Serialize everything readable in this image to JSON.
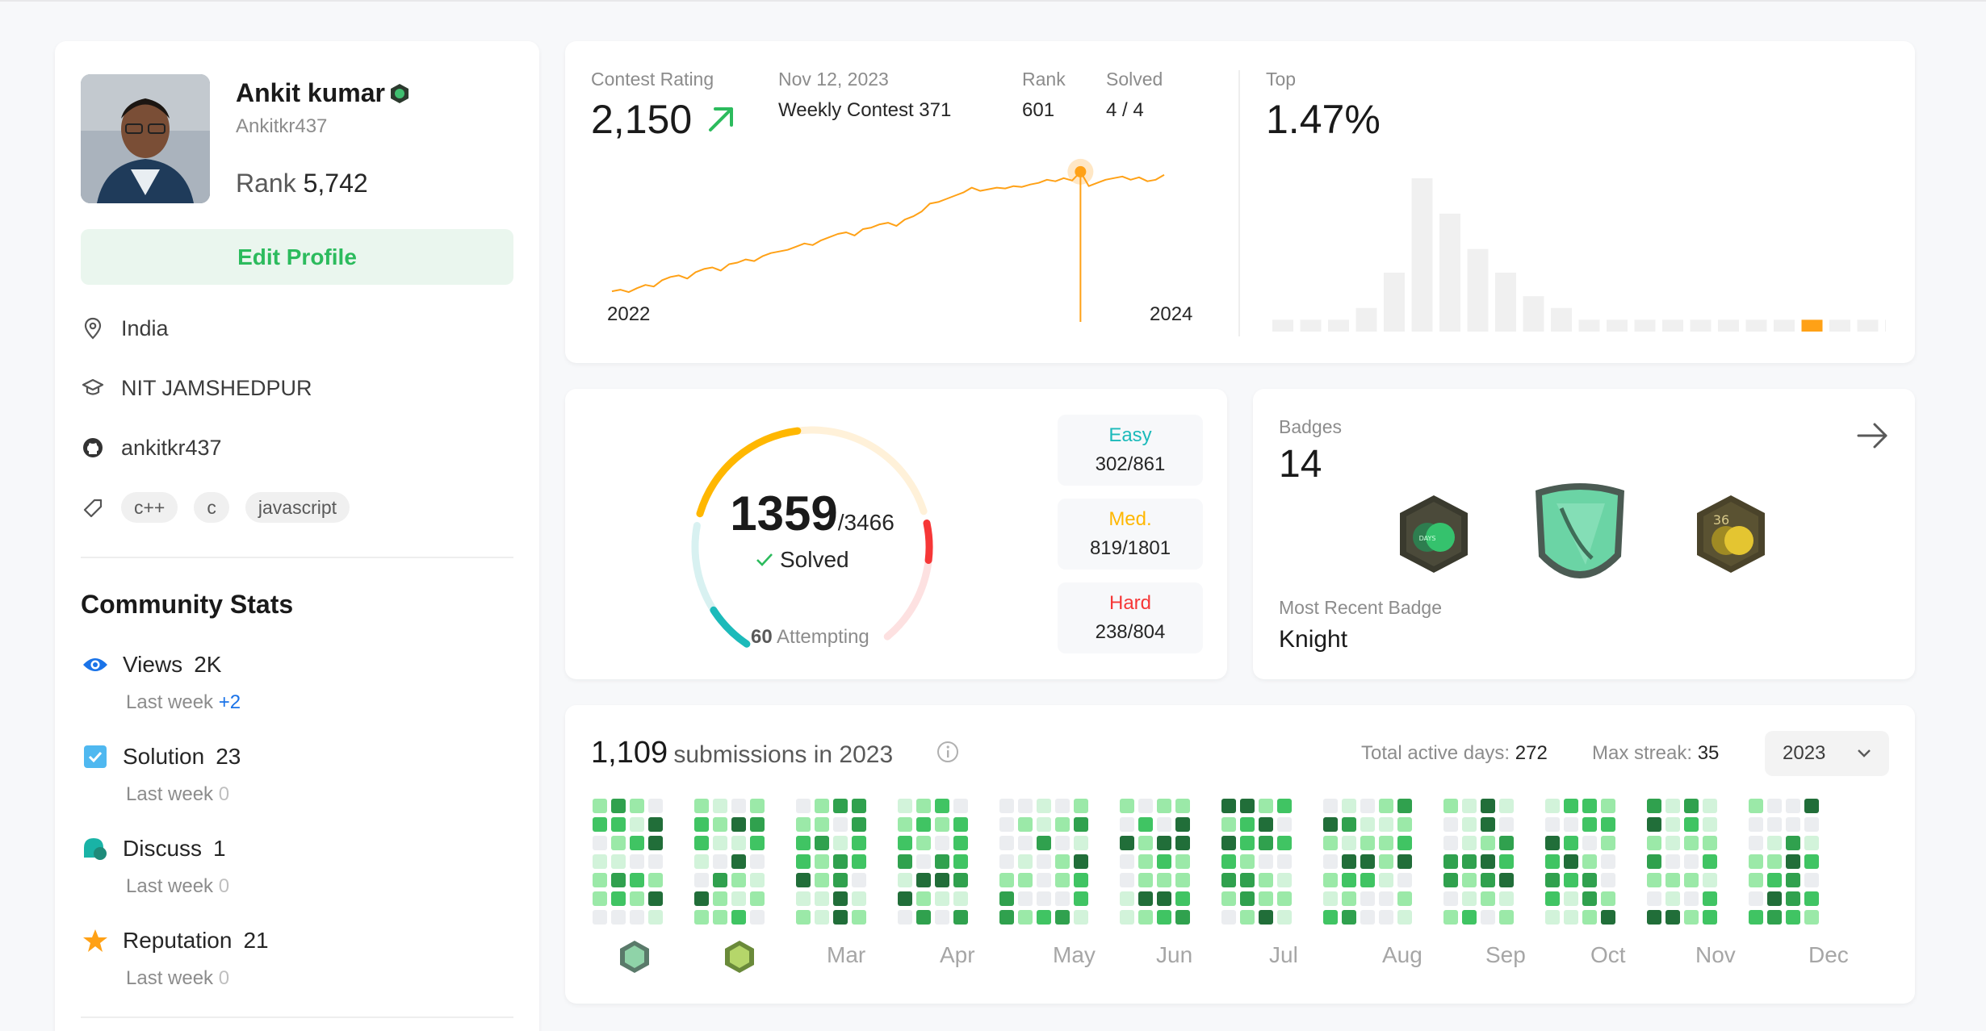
{
  "profile": {
    "name": "Ankit kumar",
    "username": "Ankitkr437",
    "rank_label": "Rank",
    "rank_value": "5,742",
    "edit_label": "Edit Profile",
    "location": "India",
    "school": "NIT JAMSHEDPUR",
    "github": "ankitkr437",
    "skills": [
      "c++",
      "c",
      "javascript"
    ]
  },
  "community": {
    "title": "Community Stats",
    "stats": [
      {
        "label": "Views",
        "value": "2K",
        "sub_label": "Last week",
        "sub_value": "+2"
      },
      {
        "label": "Solution",
        "value": "23",
        "sub_label": "Last week",
        "sub_value": "0"
      },
      {
        "label": "Discuss",
        "value": "1",
        "sub_label": "Last week",
        "sub_value": "0"
      },
      {
        "label": "Reputation",
        "value": "21",
        "sub_label": "Last week",
        "sub_value": "0"
      }
    ]
  },
  "contest": {
    "rating_label": "Contest Rating",
    "rating_value": "2,150",
    "date": "Nov 12, 2023",
    "contest_name": "Weekly Contest 371",
    "rank_label": "Rank",
    "rank_value": "601",
    "solved_label": "Solved",
    "solved_value": "4 / 4",
    "x_start": "2022",
    "x_end": "2024",
    "top_label": "Top",
    "top_value": "1.47%"
  },
  "problems": {
    "solved": "1359",
    "total": "/3466",
    "solved_label": "Solved",
    "attempting_count": "60",
    "attempting_label": "Attempting",
    "easy": {
      "label": "Easy",
      "value": "302/861",
      "solved": 302,
      "total": 861,
      "color": "#1cbaba"
    },
    "medium": {
      "label": "Med.",
      "value": "819/1801",
      "solved": 819,
      "total": 1801,
      "color": "#ffb700"
    },
    "hard": {
      "label": "Hard",
      "value": "238/804",
      "solved": 238,
      "total": 804,
      "color": "#f63737"
    }
  },
  "badges": {
    "label": "Badges",
    "count": "14",
    "recent_label": "Most Recent Badge",
    "recent_name": "Knight"
  },
  "submissions": {
    "count": "1,109",
    "text": "submissions in 2023",
    "active_label": "Total active days:",
    "active_value": "272",
    "streak_label": "Max streak:",
    "streak_value": "35",
    "year": "2023",
    "months": [
      "Mar",
      "Apr",
      "May",
      "Jun",
      "Jul",
      "Aug",
      "Sep",
      "Oct",
      "Nov",
      "Dec"
    ]
  },
  "colors": {
    "accent_green": "#2cbb5d",
    "rating_line": "#ffa116",
    "easy": "#1cbaba",
    "medium": "#ffb700",
    "hard": "#f63737"
  },
  "chart_data": [
    {
      "type": "line",
      "xlabel": "",
      "ylabel": "",
      "x_ticks": [
        "2022",
        "2024"
      ],
      "x": [
        0,
        1,
        2,
        3,
        4,
        5,
        6,
        7,
        8,
        9,
        10,
        11,
        12,
        13,
        14,
        15,
        16,
        17,
        18,
        19,
        20,
        21,
        22,
        23,
        24,
        25,
        26,
        27,
        28,
        29,
        30,
        31,
        32,
        33,
        34,
        35,
        36,
        37,
        38,
        39,
        40,
        41,
        42,
        43,
        44,
        45,
        46,
        47,
        48,
        49,
        50,
        51,
        52,
        53,
        54,
        55,
        56,
        57,
        58,
        59,
        60,
        61,
        62,
        63,
        64,
        65,
        66
      ],
      "values": [
        1400,
        1410,
        1395,
        1420,
        1440,
        1430,
        1470,
        1490,
        1500,
        1480,
        1520,
        1540,
        1550,
        1530,
        1570,
        1580,
        1600,
        1590,
        1620,
        1640,
        1650,
        1660,
        1680,
        1700,
        1690,
        1720,
        1740,
        1760,
        1770,
        1750,
        1790,
        1800,
        1820,
        1830,
        1810,
        1850,
        1870,
        1900,
        1950,
        1960,
        1980,
        2000,
        2020,
        2050,
        2030,
        2040,
        2050,
        2045,
        2060,
        2055,
        2070,
        2080,
        2100,
        2090,
        2110,
        2095,
        2150,
        2060,
        2080,
        2100,
        2110,
        2120,
        2100,
        2115,
        2090,
        2100,
        2130
      ],
      "highlight": {
        "index": 56,
        "value": 2150,
        "label": "Nov 12, 2023"
      }
    },
    {
      "type": "bar",
      "title": "Top",
      "values": [
        1,
        1,
        1,
        2,
        5,
        13,
        10,
        7,
        5,
        3,
        2,
        1,
        1,
        1,
        1,
        1,
        1,
        1,
        1,
        1,
        1,
        1,
        1
      ],
      "highlight_index": 19
    }
  ]
}
